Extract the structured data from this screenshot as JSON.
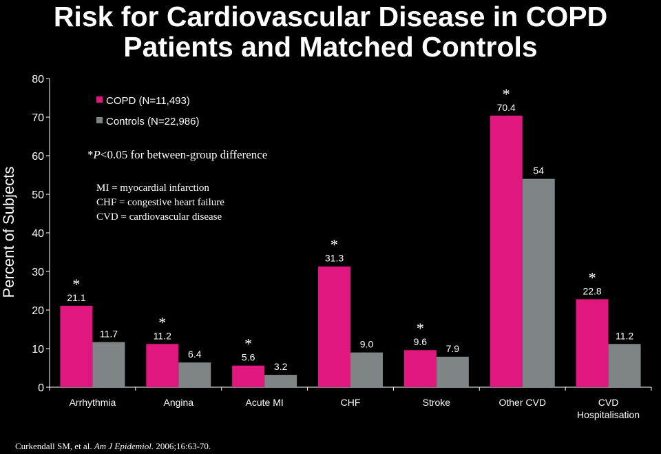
{
  "title_line1": "Risk for Cardiovascular Disease in COPD",
  "title_line2": "Patients and Matched Controls",
  "significance_note": "*P<0.05 for between-group difference",
  "significance_note_parts": {
    "star": "*",
    "p": "P",
    "rest": "<0.05 for between-group difference"
  },
  "abbreviations": [
    "MI = myocardial infarction",
    "CHF = congestive heart failure",
    "CVD = cardiovascular disease"
  ],
  "citation": {
    "authors": "Curkendall SM, et al. ",
    "journal": "Am J Epidemiol.",
    "details": " 2006;16:63-70."
  },
  "colors": {
    "copd": "#e0177f",
    "controls": "#7f8587",
    "axis": "#ffffff",
    "background": "#000000"
  },
  "chart_data": {
    "type": "bar",
    "title": "Risk for Cardiovascular Disease in COPD Patients and Matched Controls",
    "xlabel": "",
    "ylabel": "Percent of Subjects",
    "ylim": [
      0,
      80
    ],
    "yticks": [
      0,
      10,
      20,
      30,
      40,
      50,
      60,
      70,
      80
    ],
    "legend_position": "top-left",
    "grid": false,
    "categories": [
      [
        "Arrhythmia"
      ],
      [
        "Angina"
      ],
      [
        "Acute MI"
      ],
      [
        "CHF"
      ],
      [
        "Stroke"
      ],
      [
        "Other CVD"
      ],
      [
        "CVD",
        "Hospitalisation"
      ]
    ],
    "series": [
      {
        "name": "COPD (N=11,493)",
        "values": [
          21.1,
          11.2,
          5.6,
          31.3,
          9.6,
          70.4,
          22.8
        ],
        "labels": [
          "21.1",
          "11.2",
          "5.6",
          "31.3",
          "9.6",
          "70.4",
          "22.8"
        ]
      },
      {
        "name": "Controls (N=22,986)",
        "values": [
          11.7,
          6.4,
          3.2,
          9.0,
          7.9,
          54,
          11.2
        ],
        "labels": [
          "11.7",
          "6.4",
          "3.2",
          "9.0",
          "7.9",
          "54",
          "11.2"
        ]
      }
    ],
    "significant": [
      true,
      true,
      true,
      true,
      true,
      true,
      true
    ],
    "significance_marker": "*"
  }
}
